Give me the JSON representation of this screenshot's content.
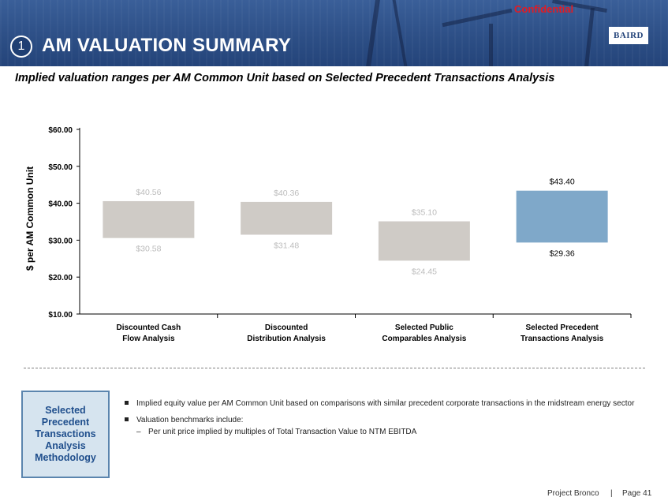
{
  "header": {
    "confidential": "Confidential",
    "section_number": "1",
    "title": "AM VALUATION SUMMARY",
    "logo_text": "BAIRD"
  },
  "subtitle": "Implied valuation ranges per AM Common Unit based on Selected Precedent Transactions Analysis",
  "chart_data": {
    "type": "bar",
    "subtype": "floating-range",
    "title": "",
    "ylabel": "$ per AM Common Unit",
    "xlabel": "",
    "ylim": [
      10,
      60
    ],
    "yticks": [
      10,
      20,
      30,
      40,
      50,
      60
    ],
    "ytick_labels": [
      "$10.00",
      "$20.00",
      "$30.00",
      "$40.00",
      "$50.00",
      "$60.00"
    ],
    "grid": false,
    "categories": [
      [
        "Discounted Cash",
        "Flow Analysis"
      ],
      [
        "Discounted",
        "Distribution Analysis"
      ],
      [
        "Selected Public",
        "Comparables Analysis"
      ],
      [
        "Selected Precedent",
        "Transactions Analysis"
      ]
    ],
    "series": [
      {
        "low": [
          30.58,
          31.48,
          24.45,
          29.36
        ],
        "high": [
          40.56,
          40.36,
          35.1,
          43.4
        ],
        "low_labels": [
          "$30.58",
          "$31.48",
          "$24.45",
          "$29.36"
        ],
        "high_labels": [
          "$40.56",
          "$40.36",
          "$35.10",
          "$43.40"
        ]
      }
    ],
    "colors": {
      "default_bar": "#cfcbc6",
      "highlight_bar": "#7fa8c9",
      "muted_label": "#bcbcbc",
      "strong_label": "#000000"
    },
    "highlight_index": 3
  },
  "methodology": {
    "box_label": "Selected Precedent Transactions Analysis Methodology",
    "bullets": [
      "Implied equity value per AM Common Unit based on comparisons with similar precedent corporate transactions in the midstream energy sector",
      "Valuation benchmarks include:"
    ],
    "sub_bullets": [
      "Per unit price implied by multiples of Total Transaction Value to NTM EBITDA"
    ],
    "dash": "–"
  },
  "footer": {
    "project": "Project Bronco",
    "separator": "|",
    "page": "Page 41"
  }
}
